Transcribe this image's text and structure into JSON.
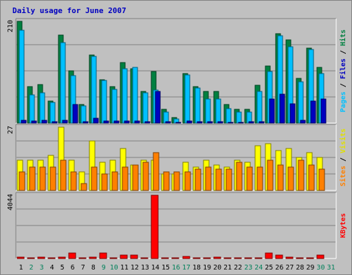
{
  "chart_data": {
    "type": "bar",
    "title": "Daily usage for June 2007",
    "days": [
      "1",
      "2",
      "3",
      "4",
      "5",
      "6",
      "7",
      "8",
      "9",
      "10",
      "11",
      "12",
      "13",
      "14",
      "15",
      "16",
      "17",
      "18",
      "19",
      "20",
      "21",
      "22",
      "23",
      "24",
      "25",
      "26",
      "27",
      "28",
      "29",
      "30",
      "31"
    ],
    "weekend_days": [
      "2",
      "3",
      "9",
      "10",
      "16",
      "17",
      "23",
      "24",
      "30",
      "31"
    ],
    "panels": [
      {
        "id": "pages-files-hits",
        "max_label": "210",
        "ymax": 210,
        "side_label": [
          "Pages",
          "Files",
          "Hits"
        ],
        "series": [
          {
            "name": "Hits",
            "color": "#008040",
            "values": [
              210,
              75,
              80,
              46,
              182,
              108,
              38,
              140,
              90,
              75,
              125,
              112,
              65,
              106,
              28,
              12,
              102,
              75,
              65,
              65,
              38,
              28,
              28,
              78,
              118,
              185,
              172,
              92,
              155,
              115,
              0
            ]
          },
          {
            "name": "Files",
            "color": "#00c0ff",
            "values": [
              192,
              58,
              62,
              42,
              166,
              98,
              35,
              138,
              88,
              70,
              112,
              115,
              62,
              68,
              22,
              8,
              100,
              72,
              50,
              50,
              30,
              22,
              22,
              65,
              106,
              180,
              158,
              85,
              152,
              102,
              0
            ]
          },
          {
            "name": "Pages",
            "color": "#0000c0",
            "values": [
              5,
              4,
              5,
              3,
              5,
              38,
              3,
              10,
              4,
              4,
              4,
              4,
              3,
              65,
              3,
              2,
              4,
              3,
              3,
              3,
              2,
              2,
              3,
              3,
              50,
              60,
              40,
              5,
              45,
              50,
              0
            ]
          }
        ]
      },
      {
        "id": "sites-visits",
        "max_label": "27",
        "ymax": 27,
        "side_label": [
          "Sites",
          "Visits"
        ],
        "series": [
          {
            "name": "Visits",
            "color": "#ffff00",
            "values": [
              13,
              13,
              13,
              15,
              27,
              13,
              8,
              21,
              12,
              13,
              18,
              11,
              13,
              13,
              7,
              7,
              12,
              10,
              13,
              11,
              10,
              13,
              12,
              19,
              20,
              17,
              18,
              14,
              16,
              14,
              0
            ]
          },
          {
            "name": "Sites",
            "color": "#ff8000",
            "values": [
              8,
              10,
              10,
              10,
              13,
              8,
              3,
              10,
              7,
              8,
              10,
              11,
              12,
              16,
              8,
              8,
              8,
              9,
              10,
              9,
              9,
              12,
              10,
              10,
              13,
              11,
              10,
              13,
              11,
              9,
              0
            ]
          }
        ]
      },
      {
        "id": "kbytes",
        "max_label": "4044",
        "ymax": 4044,
        "side_label": [
          "KBytes"
        ],
        "series": [
          {
            "name": "KBytes",
            "color": "#ff0000",
            "values": [
              80,
              55,
              80,
              55,
              90,
              360,
              60,
              90,
              330,
              60,
              230,
              230,
              60,
              4044,
              60,
              55,
              115,
              55,
              55,
              85,
              55,
              55,
              55,
              60,
              360,
              200,
              90,
              55,
              55,
              200,
              0
            ]
          }
        ]
      }
    ]
  }
}
